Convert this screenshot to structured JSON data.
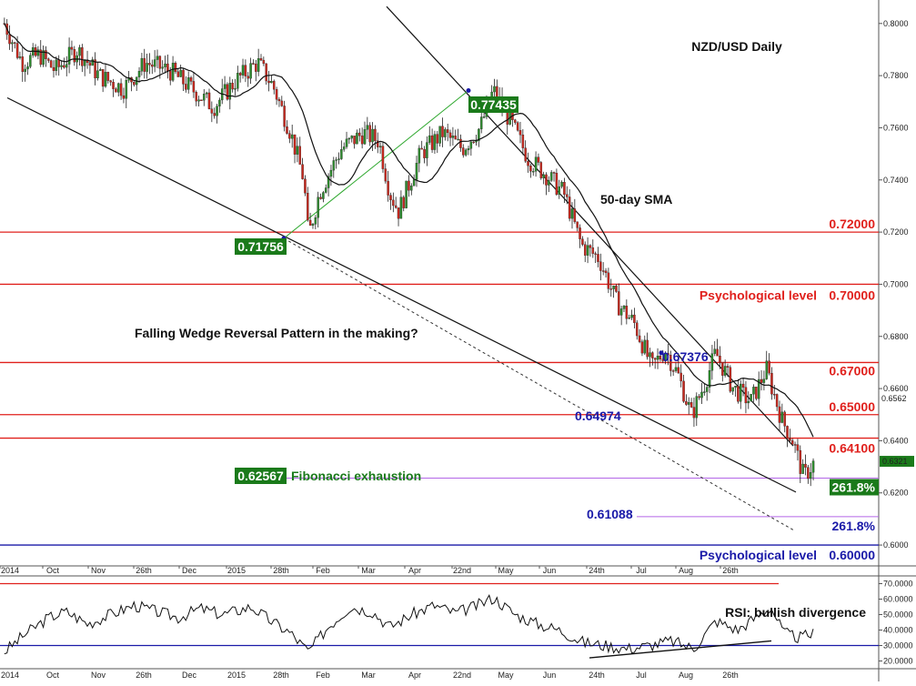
{
  "chart_data": [
    {
      "type": "candlestick",
      "title": "NZD/USD Daily",
      "y_axis": {
        "range": [
          0.592,
          0.809
        ],
        "ticks": [
          "0.8000",
          "0.7800",
          "0.7600",
          "0.7400",
          "0.7200",
          "0.7000",
          "0.6800",
          "0.6600",
          "0.6400",
          "0.6200",
          "0.6000"
        ],
        "position": "right"
      },
      "x_axis": {
        "ticks": [
          "2014",
          "Oct",
          "Nov",
          "26th",
          "Dec",
          "2015",
          "28th",
          "Feb",
          "Mar",
          "Apr",
          "22nd",
          "May",
          "Jun",
          "24th",
          "Jul",
          "Aug",
          "26th"
        ]
      },
      "current_price": "0.6321",
      "crosshair_price": "0.6562",
      "price_path": [
        [
          "2014-09-12",
          0.8
        ],
        [
          "2014-09-20",
          0.785
        ],
        [
          "2014-09-28",
          0.788
        ],
        [
          "2014-10-05",
          0.782
        ],
        [
          "2014-10-15",
          0.79
        ],
        [
          "2014-10-25",
          0.78
        ],
        [
          "2014-11-05",
          0.775
        ],
        [
          "2014-11-15",
          0.785
        ],
        [
          "2014-11-26",
          0.782
        ],
        [
          "2014-12-06",
          0.775
        ],
        [
          "2014-12-16",
          0.768
        ],
        [
          "2014-12-26",
          0.778
        ],
        [
          "2015-01-05",
          0.785
        ],
        [
          "2015-01-12",
          0.776
        ],
        [
          "2015-01-20",
          0.758
        ],
        [
          "2015-01-26",
          0.74
        ],
        [
          "2015-01-28",
          0.718
        ],
        [
          "2015-02-02",
          0.735
        ],
        [
          "2015-02-12",
          0.752
        ],
        [
          "2015-02-22",
          0.758
        ],
        [
          "2015-03-01",
          0.755
        ],
        [
          "2015-03-06",
          0.735
        ],
        [
          "2015-03-10",
          0.728
        ],
        [
          "2015-03-20",
          0.75
        ],
        [
          "2015-03-30",
          0.758
        ],
        [
          "2015-04-08",
          0.752
        ],
        [
          "2015-04-16",
          0.76
        ],
        [
          "2015-04-22",
          0.7743
        ],
        [
          "2015-04-30",
          0.762
        ],
        [
          "2015-05-08",
          0.748
        ],
        [
          "2015-05-16",
          0.742
        ],
        [
          "2015-05-24",
          0.735
        ],
        [
          "2015-06-01",
          0.715
        ],
        [
          "2015-06-09",
          0.71
        ],
        [
          "2015-06-17",
          0.693
        ],
        [
          "2015-06-25",
          0.685
        ],
        [
          "2015-07-03",
          0.668
        ],
        [
          "2015-07-09",
          0.675
        ],
        [
          "2015-07-15",
          0.665
        ],
        [
          "2015-07-21",
          0.6497
        ],
        [
          "2015-07-27",
          0.662
        ],
        [
          "2015-08-01",
          0.6737
        ],
        [
          "2015-08-09",
          0.66
        ],
        [
          "2015-08-17",
          0.655
        ],
        [
          "2015-08-24",
          0.6675
        ],
        [
          "2015-08-31",
          0.648
        ],
        [
          "2015-09-05",
          0.64
        ],
        [
          "2015-09-10",
          0.626
        ],
        [
          "2015-09-15",
          0.6321
        ]
      ],
      "moving_average": {
        "label": "50-day SMA"
      },
      "horizontal_levels": [
        {
          "value": 0.72,
          "label": "0.72000",
          "color": "#e0201c"
        },
        {
          "value": 0.7,
          "label": "0.70000",
          "note": "Psychological level",
          "color": "#e0201c"
        },
        {
          "value": 0.67,
          "label": "0.67000",
          "color": "#e0201c"
        },
        {
          "value": 0.65,
          "label": "0.65000",
          "color": "#e0201c"
        },
        {
          "value": 0.641,
          "label": "0.64100",
          "color": "#e0201c"
        },
        {
          "value": 0.62567,
          "label": "261.8%",
          "color": "#b466e8"
        },
        {
          "value": 0.61088,
          "label": "261.8%",
          "color": "#b466e8"
        },
        {
          "value": 0.6,
          "label": "0.60000",
          "note": "Psychological level",
          "color": "#1a1aa8"
        }
      ],
      "annotations": [
        {
          "text": "NZD/USD Daily"
        },
        {
          "text": "50-day SMA"
        },
        {
          "text": "Falling Wedge Reversal Pattern in the making?"
        },
        {
          "text": "Fibonacci exhaustion",
          "value": "0.62567"
        },
        {
          "text": "0.77435",
          "style": "green-box"
        },
        {
          "text": "0.71756",
          "style": "green-box"
        },
        {
          "text": "0.67376",
          "style": "blue"
        },
        {
          "text": "0.64974",
          "style": "blue"
        },
        {
          "text": "0.61088",
          "style": "blue"
        }
      ],
      "colors": {
        "up": "#2e8b2e",
        "down": "#c8281e",
        "level_red": "#e0201c",
        "level_blue": "#1a1aa8",
        "fib": "#b466e8",
        "label_box": "#1a7a1a"
      }
    },
    {
      "type": "line",
      "title": "RSI: bullish divergence",
      "y_axis": {
        "range": [
          15,
          75
        ],
        "ticks": [
          "70.0000",
          "60.0000",
          "50.0000",
          "40.0000",
          "30.0000",
          "20.0000"
        ],
        "levels": [
          70,
          30
        ],
        "position": "right"
      },
      "x_axis": {
        "ticks": [
          "2014",
          "Oct",
          "Nov",
          "26th",
          "Dec",
          "2015",
          "28th",
          "Feb",
          "Mar",
          "Apr",
          "22nd",
          "May",
          "Jun",
          "24th",
          "Jul",
          "Aug",
          "26th"
        ]
      },
      "rsi_path": [
        [
          "2014-09-12",
          26
        ],
        [
          "2014-09-22",
          38
        ],
        [
          "2014-10-02",
          48
        ],
        [
          "2014-10-10",
          52
        ],
        [
          "2014-10-20",
          44
        ],
        [
          "2014-10-30",
          50
        ],
        [
          "2014-11-10",
          56
        ],
        [
          "2014-11-20",
          52
        ],
        [
          "2014-11-30",
          48
        ],
        [
          "2014-12-10",
          54
        ],
        [
          "2014-12-20",
          50
        ],
        [
          "2015-01-02",
          55
        ],
        [
          "2015-01-12",
          45
        ],
        [
          "2015-01-20",
          38
        ],
        [
          "2015-01-28",
          26
        ],
        [
          "2015-02-06",
          42
        ],
        [
          "2015-02-16",
          55
        ],
        [
          "2015-02-26",
          52
        ],
        [
          "2015-03-06",
          42
        ],
        [
          "2015-03-16",
          50
        ],
        [
          "2015-03-26",
          56
        ],
        [
          "2015-04-05",
          51
        ],
        [
          "2015-04-15",
          56
        ],
        [
          "2015-04-22",
          61
        ],
        [
          "2015-05-02",
          50
        ],
        [
          "2015-05-12",
          44
        ],
        [
          "2015-05-22",
          40
        ],
        [
          "2015-06-02",
          32
        ],
        [
          "2015-06-12",
          30
        ],
        [
          "2015-06-22",
          28
        ],
        [
          "2015-07-02",
          30
        ],
        [
          "2015-07-12",
          33
        ],
        [
          "2015-07-22",
          28
        ],
        [
          "2015-08-01",
          46
        ],
        [
          "2015-08-11",
          40
        ],
        [
          "2015-08-21",
          50
        ],
        [
          "2015-08-26",
          55
        ],
        [
          "2015-09-01",
          38
        ],
        [
          "2015-09-08",
          35
        ],
        [
          "2015-09-15",
          38
        ]
      ],
      "annotations": [
        {
          "text": "RSI: bullish divergence"
        }
      ],
      "colors": {
        "line": "#111111",
        "overbought": "#e0201c",
        "oversold": "#1a1aa8"
      }
    }
  ]
}
